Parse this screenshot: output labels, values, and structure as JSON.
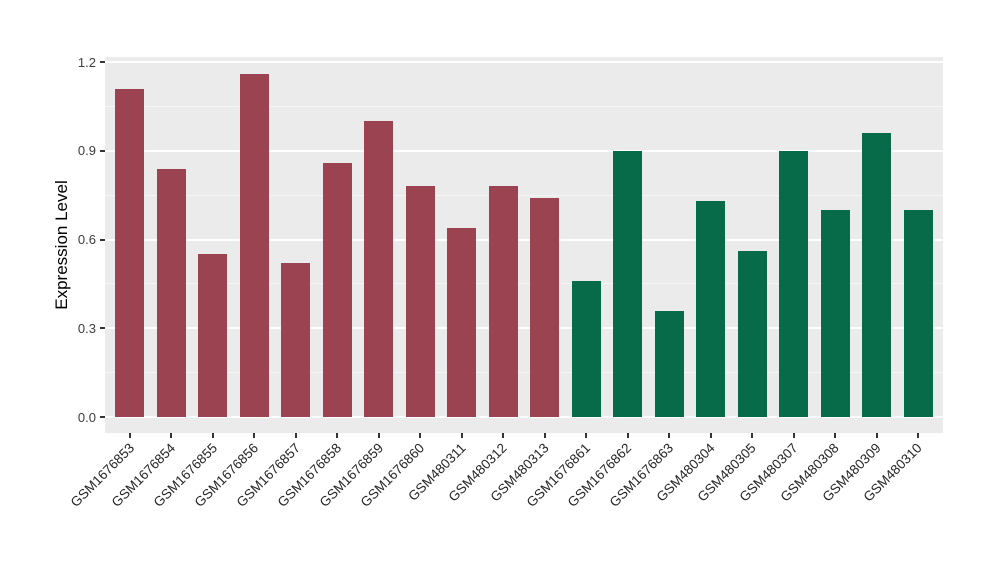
{
  "chart_data": {
    "type": "bar",
    "title": "",
    "xlabel": "",
    "ylabel": "Expression Level",
    "ylim": [
      0,
      1.2
    ],
    "yticks": [
      0.0,
      0.3,
      0.6,
      0.9,
      1.2
    ],
    "ytick_labels": [
      "0.0",
      "0.3",
      "0.6",
      "0.9",
      "1.2"
    ],
    "yticks_minor": [
      0.15,
      0.45,
      0.75,
      1.05
    ],
    "grid": "on",
    "legend": "none",
    "panel_background_color": "#EBEBEB",
    "gridline_color": "#FFFFFF",
    "groups": [
      {
        "name": "group-1-red",
        "color": "#9C4351"
      },
      {
        "name": "group-2-green",
        "color": "#076A49"
      }
    ],
    "categories": [
      "GSM1676853",
      "GSM1676854",
      "GSM1676855",
      "GSM1676856",
      "GSM1676857",
      "GSM1676858",
      "GSM1676859",
      "GSM1676860",
      "GSM480311",
      "GSM480312",
      "GSM480313",
      "GSM1676861",
      "GSM1676862",
      "GSM1676863",
      "GSM480304",
      "GSM480305",
      "GSM480307",
      "GSM480308",
      "GSM480309",
      "GSM480310"
    ],
    "values": [
      1.11,
      0.84,
      0.55,
      1.16,
      0.52,
      0.86,
      1.0,
      0.78,
      0.64,
      0.78,
      0.74,
      0.46,
      0.9,
      0.36,
      0.73,
      0.56,
      0.9,
      0.7,
      0.96,
      0.7
    ],
    "bar_groups": [
      0,
      0,
      0,
      0,
      0,
      0,
      0,
      0,
      0,
      0,
      0,
      1,
      1,
      1,
      1,
      1,
      1,
      1,
      1,
      1
    ]
  }
}
